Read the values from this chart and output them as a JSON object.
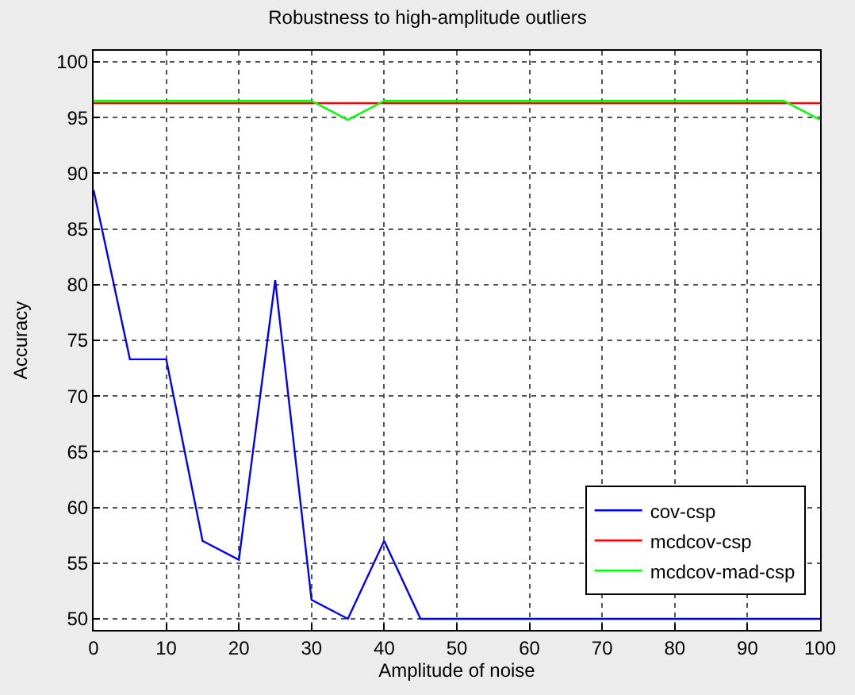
{
  "chart_data": {
    "type": "line",
    "title": "Robustness to high-amplitude outliers",
    "xlabel": "Amplitude of noise",
    "ylabel": "Accuracy",
    "x": [
      0,
      5,
      10,
      15,
      20,
      25,
      30,
      35,
      40,
      45,
      50,
      55,
      60,
      65,
      70,
      75,
      80,
      85,
      90,
      95,
      100
    ],
    "series": [
      {
        "name": "cov-csp",
        "color": "#0000ff",
        "values": [
          88.5,
          73.3,
          73.3,
          57,
          55.3,
          80.4,
          51.7,
          50,
          57,
          50,
          50,
          50,
          50,
          50,
          50,
          50,
          50,
          50,
          50,
          50,
          50
        ]
      },
      {
        "name": "mcdcov-csp",
        "color": "#ff0000",
        "values": [
          96.3,
          96.3,
          96.3,
          96.3,
          96.3,
          96.3,
          96.3,
          96.3,
          96.3,
          96.3,
          96.3,
          96.3,
          96.3,
          96.3,
          96.3,
          96.3,
          96.3,
          96.3,
          96.3,
          96.3,
          96.3
        ]
      },
      {
        "name": "mcdcov-mad-csp",
        "color": "#00ff00",
        "values": [
          96.5,
          96.5,
          96.5,
          96.5,
          96.5,
          96.5,
          96.5,
          94.8,
          96.5,
          96.5,
          96.5,
          96.5,
          96.5,
          96.5,
          96.5,
          96.5,
          96.5,
          96.5,
          96.5,
          96.5,
          94.8
        ]
      }
    ],
    "xlim": [
      0,
      100
    ],
    "xticks": [
      0,
      10,
      20,
      30,
      40,
      50,
      60,
      70,
      80,
      90,
      100
    ],
    "ylim": [
      49,
      101
    ],
    "yticks": [
      50,
      55,
      60,
      65,
      70,
      75,
      80,
      85,
      90,
      95,
      100
    ],
    "grid": true,
    "legend": "bottom right",
    "marker": "none",
    "line_style": "solid"
  }
}
